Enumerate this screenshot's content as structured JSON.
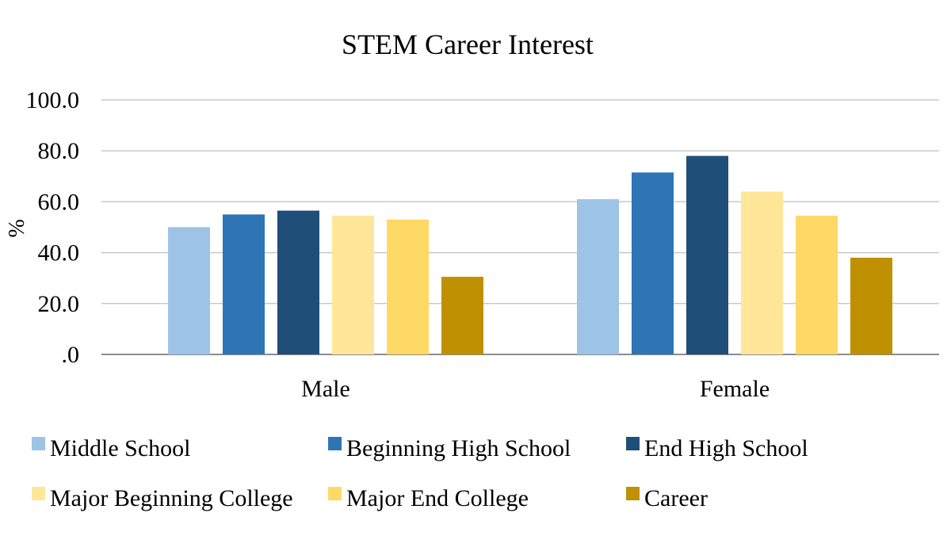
{
  "chart_data": {
    "type": "bar",
    "title": "STEM Career Interest",
    "xlabel": "",
    "ylabel": "%",
    "ylim": [
      0,
      100
    ],
    "yticks": [
      ".0",
      "20.0",
      "40.0",
      "60.0",
      "80.0",
      "100.0"
    ],
    "ytick_values": [
      0,
      20,
      40,
      60,
      80,
      100
    ],
    "grid": true,
    "legend_position": "bottom",
    "categories": [
      "Male",
      "Female"
    ],
    "series": [
      {
        "name": "Middle School",
        "color": "#9DC3E6",
        "values": [
          50,
          61
        ]
      },
      {
        "name": "Beginning High School",
        "color": "#2E75B6",
        "values": [
          55,
          71.5
        ]
      },
      {
        "name": "End High School",
        "color": "#1F4E79",
        "values": [
          56.5,
          78
        ]
      },
      {
        "name": "Major Beginning College",
        "color": "#FFE699",
        "values": [
          54.5,
          64
        ]
      },
      {
        "name": "Major End College",
        "color": "#FFD966",
        "values": [
          53,
          54.5
        ]
      },
      {
        "name": "Career",
        "color": "#BF9000",
        "values": [
          30.5,
          38
        ]
      }
    ]
  }
}
